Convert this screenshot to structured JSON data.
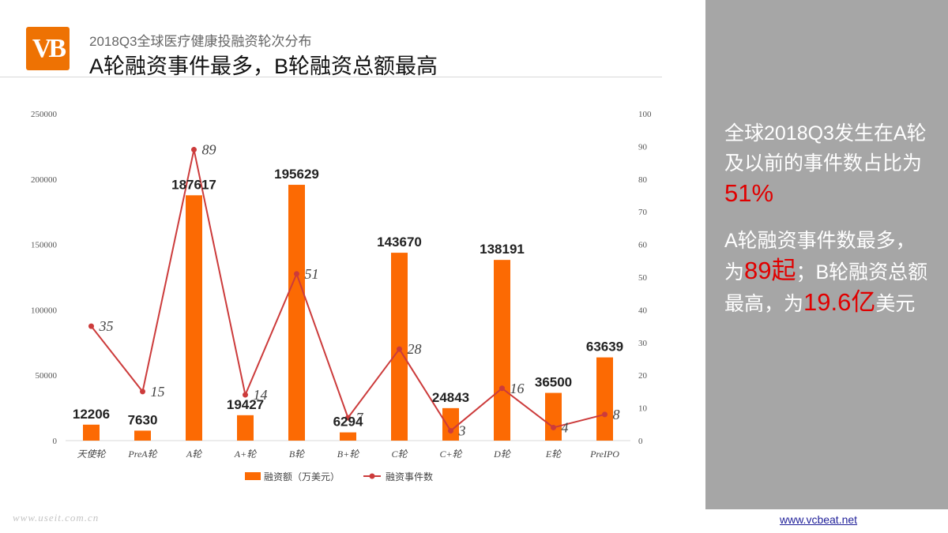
{
  "logo_text": "VB",
  "header": {
    "subtitle": "2018Q3全球医疗健康投融资轮次分布",
    "title": "A轮融资事件最多，B轮融资总额最高"
  },
  "side_panel": {
    "p1_text": "全球2018Q3发生在A轮及以前的事件数占比为",
    "p1_highlight": "51%",
    "p2_text_a": "A轮融资事件数最多，为",
    "p2_highlight_a": "89起",
    "p2_text_b": "；B轮融资总额最高，为",
    "p2_highlight_b": "19.6亿",
    "p2_text_c": "美元"
  },
  "footer": {
    "link": "www.vcbeat.net",
    "watermark": "www.useit.com.cn"
  },
  "colors": {
    "bar": "#fc6a03",
    "line": "#cc3b3b",
    "accent": "#ee7203",
    "panel": "#a6a6a6",
    "highlight": "#e00000"
  },
  "chart_data": {
    "type": "bar",
    "categories": [
      "天使轮",
      "PreA轮",
      "A轮",
      "A+轮",
      "B轮",
      "B+轮",
      "C轮",
      "C+轮",
      "D轮",
      "E轮",
      "PreIPO"
    ],
    "series": [
      {
        "name": "融资额（万美元）",
        "type": "bar",
        "axis": "left",
        "values": [
          12206,
          7630,
          187617,
          19427,
          195629,
          6294,
          143670,
          24843,
          138191,
          36500,
          63639
        ]
      },
      {
        "name": "融资事件数",
        "type": "line",
        "axis": "right",
        "values": [
          35,
          15,
          89,
          14,
          51,
          7,
          28,
          3,
          16,
          4,
          8
        ]
      }
    ],
    "y_left": {
      "range": [
        0,
        250000
      ],
      "ticks": [
        0,
        50000,
        100000,
        150000,
        200000,
        250000
      ]
    },
    "y_right": {
      "range": [
        0,
        100
      ],
      "ticks": [
        0,
        10,
        20,
        30,
        40,
        50,
        60,
        70,
        80,
        90,
        100
      ]
    },
    "legend_position": "bottom",
    "grid": false
  }
}
